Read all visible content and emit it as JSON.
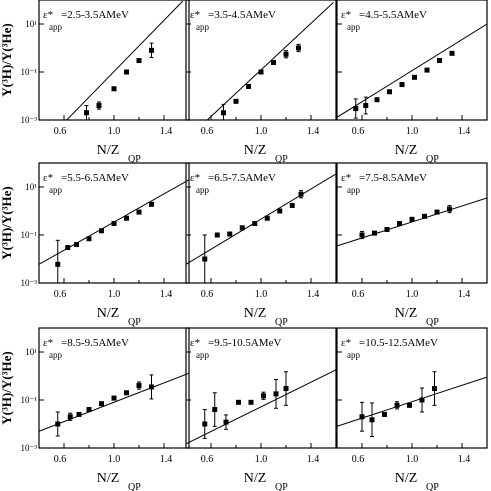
{
  "figure": {
    "ylabel": "Y(³H)/Y(³He)",
    "xlabel_base": "N/Z",
    "xlabel_sub": "QP",
    "eps_symbol": "ε*",
    "eps_sub": "app"
  },
  "chart_data": [
    {
      "type": "scatter",
      "range_label": "=2.5-3.5AMeV",
      "xlim": [
        0.4,
        1.6
      ],
      "ylim": [
        0.001,
        100
      ],
      "log_y": true,
      "x_ticks": [
        "0.6",
        "1.0",
        "1.4"
      ],
      "y_ticks": [
        "10⁻³",
        "10⁻¹",
        "10¹"
      ],
      "x": [
        0.78,
        0.88,
        1.0,
        1.1,
        1.2,
        1.3
      ],
      "y": [
        0.002,
        0.004,
        0.02,
        0.1,
        0.3,
        0.8
      ],
      "err": [
        0.3,
        0.15,
        0,
        0,
        0,
        0.3
      ],
      "fit": {
        "x": [
          0.58,
          1.55
        ],
        "y": [
          0.0006,
          90
        ]
      }
    },
    {
      "type": "scatter",
      "range_label": "=3.5-4.5AMeV",
      "xlim": [
        0.4,
        1.6
      ],
      "ylim": [
        0.001,
        100
      ],
      "log_y": true,
      "x_ticks": [
        "0.6",
        "1.0",
        "1.4"
      ],
      "y_ticks": [],
      "x": [
        0.7,
        0.8,
        0.9,
        1.0,
        1.1,
        1.2,
        1.3
      ],
      "y": [
        0.002,
        0.006,
        0.025,
        0.1,
        0.25,
        0.55,
        1.0
      ],
      "err": [
        0.35,
        0,
        0,
        0,
        0,
        0.15,
        0.15
      ],
      "fit": {
        "x": [
          0.55,
          1.58
        ],
        "y": [
          0.0008,
          80
        ]
      }
    },
    {
      "type": "scatter",
      "range_label": "=4.5-5.5AMeV",
      "xlim": [
        0.4,
        1.6
      ],
      "ylim": [
        0.001,
        100
      ],
      "log_y": true,
      "x_ticks": [
        "0.6",
        "1.0",
        "1.4"
      ],
      "y_ticks": [],
      "x": [
        0.55,
        0.63,
        0.72,
        0.82,
        0.92,
        1.02,
        1.12,
        1.22,
        1.32
      ],
      "y": [
        0.003,
        0.004,
        0.007,
        0.015,
        0.03,
        0.06,
        0.12,
        0.3,
        0.6
      ],
      "err": [
        0.4,
        0.35,
        0,
        0,
        0,
        0,
        0,
        0,
        0
      ],
      "fit": {
        "x": [
          0.4,
          1.6
        ],
        "y": [
          0.0013,
          10
        ]
      }
    },
    {
      "type": "scatter",
      "range_label": "=5.5-6.5AMeV",
      "xlim": [
        0.4,
        1.6
      ],
      "ylim": [
        0.001,
        100
      ],
      "log_y": true,
      "x_ticks": [
        "0.6",
        "1.0",
        "1.4"
      ],
      "y_ticks": [
        "10⁻³",
        "10⁻¹",
        "10¹"
      ],
      "x": [
        0.55,
        0.63,
        0.7,
        0.8,
        0.9,
        1.0,
        1.1,
        1.2,
        1.3
      ],
      "y": [
        0.006,
        0.03,
        0.04,
        0.07,
        0.15,
        0.3,
        0.5,
        0.9,
        1.9
      ],
      "err": [
        1.0,
        0,
        0,
        0,
        0,
        0,
        0,
        0,
        0
      ],
      "fit": {
        "x": [
          0.4,
          1.6
        ],
        "y": [
          0.006,
          20
        ]
      }
    },
    {
      "type": "scatter",
      "range_label": "=6.5-7.5AMeV",
      "xlim": [
        0.4,
        1.6
      ],
      "ylim": [
        0.001,
        100
      ],
      "log_y": true,
      "x_ticks": [
        "0.6",
        "1.0",
        "1.4"
      ],
      "y_ticks": [],
      "x": [
        0.55,
        0.65,
        0.75,
        0.85,
        0.95,
        1.05,
        1.15,
        1.25,
        1.32
      ],
      "y": [
        0.01,
        0.1,
        0.11,
        0.2,
        0.3,
        0.5,
        1.0,
        1.7,
        5.0
      ],
      "err": [
        1.0,
        0,
        0,
        0,
        0,
        0,
        0,
        0,
        0.15
      ],
      "fit": {
        "x": [
          0.4,
          1.6
        ],
        "y": [
          0.006,
          35
        ]
      }
    },
    {
      "type": "scatter",
      "range_label": "=7.5-8.5AMeV",
      "xlim": [
        0.4,
        1.6
      ],
      "ylim": [
        0.001,
        100
      ],
      "log_y": true,
      "x_ticks": [
        "0.6",
        "1.0",
        "1.4"
      ],
      "y_ticks": [],
      "x": [
        0.6,
        0.7,
        0.8,
        0.9,
        1.0,
        1.1,
        1.2,
        1.3
      ],
      "y": [
        0.1,
        0.12,
        0.17,
        0.3,
        0.45,
        0.6,
        0.9,
        1.2
      ],
      "err": [
        0.15,
        0,
        0,
        0,
        0,
        0,
        0,
        0.15
      ],
      "fit": {
        "x": [
          0.4,
          1.6
        ],
        "y": [
          0.035,
          3.5
        ]
      }
    },
    {
      "type": "scatter",
      "range_label": "=8.5-9.5AMeV",
      "xlim": [
        0.4,
        1.6
      ],
      "ylim": [
        0.001,
        100
      ],
      "log_y": true,
      "x_ticks": [
        "0.6",
        "1.0",
        "1.4"
      ],
      "y_ticks": [
        "10⁻³",
        "10⁻¹",
        "10¹"
      ],
      "x": [
        0.55,
        0.65,
        0.72,
        0.8,
        0.9,
        1.0,
        1.1,
        1.2,
        1.3
      ],
      "y": [
        0.01,
        0.02,
        0.025,
        0.04,
        0.07,
        0.12,
        0.2,
        0.4,
        0.35
      ],
      "err": [
        0.5,
        0.15,
        0,
        0,
        0,
        0,
        0,
        0.15,
        0.5
      ],
      "fit": {
        "x": [
          0.4,
          1.6
        ],
        "y": [
          0.005,
          1.3
        ]
      }
    },
    {
      "type": "scatter",
      "range_label": "=9.5-10.5AMeV",
      "xlim": [
        0.4,
        1.6
      ],
      "ylim": [
        0.001,
        100
      ],
      "log_y": true,
      "x_ticks": [
        "0.6",
        "1.0",
        "1.4"
      ],
      "y_ticks": [],
      "x": [
        0.55,
        0.63,
        0.72,
        0.82,
        0.92,
        1.02,
        1.12,
        1.2
      ],
      "y": [
        0.01,
        0.04,
        0.012,
        0.08,
        0.08,
        0.15,
        0.18,
        0.3
      ],
      "err": [
        0.6,
        0.7,
        0.3,
        0,
        0,
        0.15,
        0.6,
        0.7
      ],
      "fit": {
        "x": [
          0.4,
          1.6
        ],
        "y": [
          0.0015,
          1.8
        ]
      }
    },
    {
      "type": "scatter",
      "range_label": "=10.5-12.5AMeV",
      "xlim": [
        0.4,
        1.6
      ],
      "ylim": [
        0.001,
        100
      ],
      "log_y": true,
      "x_ticks": [
        "0.6",
        "1.0",
        "1.4"
      ],
      "y_ticks": [],
      "x": [
        0.6,
        0.68,
        0.78,
        0.88,
        0.98,
        1.08,
        1.18
      ],
      "y": [
        0.02,
        0.015,
        0.025,
        0.06,
        0.06,
        0.1,
        0.3
      ],
      "err": [
        0.6,
        0.7,
        0,
        0.15,
        0,
        0.5,
        0.7
      ],
      "fit": {
        "x": [
          0.4,
          1.6
        ],
        "y": [
          0.008,
          0.9
        ]
      }
    }
  ]
}
